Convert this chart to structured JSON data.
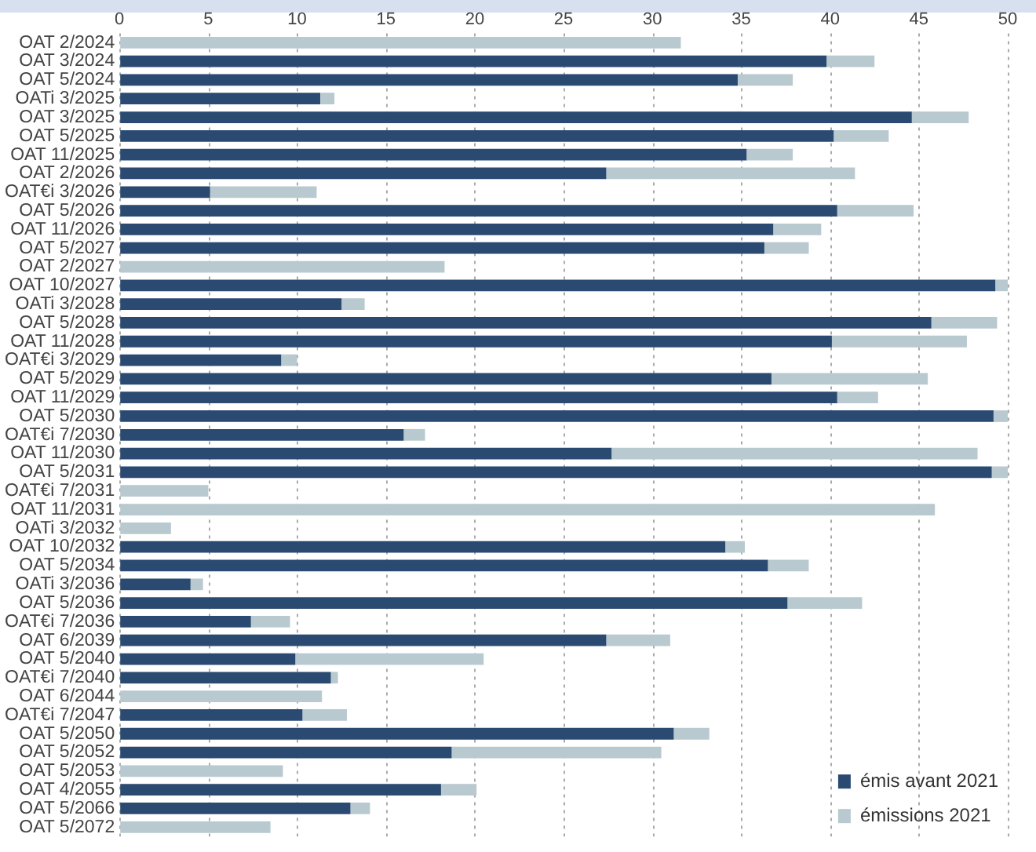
{
  "chart_data": {
    "type": "bar",
    "orientation": "horizontal",
    "stacked": true,
    "grid": "x",
    "legend": "bottom right",
    "categories": [
      "OAT 2/2024",
      "OAT 3/2024",
      "OAT 5/2024",
      "OATi 3/2025",
      "OAT 3/2025",
      "OAT 5/2025",
      "OAT 11/2025",
      "OAT 2/2026",
      "OAT€i 3/2026",
      "OAT 5/2026",
      "OAT 11/2026",
      "OAT 5/2027",
      "OAT 2/2027",
      "OAT 10/2027",
      "OATi 3/2028",
      "OAT 5/2028",
      "OAT 11/2028",
      "OAT€i 3/2029",
      "OAT 5/2029",
      "OAT 11/2029",
      "OAT 5/2030",
      "OAT€i 7/2030",
      "OAT 11/2030",
      "OAT 5/2031",
      "OAT€i 7/2031",
      "OAT 11/2031",
      "OATi 3/2032",
      "OAT 10/2032",
      "OAT 5/2034",
      "OATi 3/2036",
      "OAT 5/2036",
      "OAT€i 7/2036",
      "OAT 6/2039",
      "OAT 5/2040",
      "OAT€i 7/2040",
      "OAT 6/2044",
      "OAT€i 7/2047",
      "OAT 5/2050",
      "OAT 5/2052",
      "OAT 5/2053",
      "OAT 4/2055",
      "OAT 5/2066",
      "OAT 5/2072"
    ],
    "xlim": [
      0,
      50
    ],
    "xticks": [
      0,
      5,
      10,
      15,
      20,
      25,
      30,
      35,
      40,
      45,
      50
    ],
    "series": [
      {
        "name": "émis avant 2021",
        "color": "#2b4a72",
        "values": [
          null,
          39.8,
          34.8,
          11.3,
          44.6,
          40.2,
          35.3,
          27.4,
          5.1,
          40.4,
          36.8,
          36.3,
          null,
          49.3,
          12.5,
          45.7,
          40.1,
          9.1,
          36.7,
          40.4,
          49.2,
          16.0,
          27.7,
          49.1,
          null,
          null,
          null,
          34.1,
          36.5,
          4.0,
          37.6,
          7.4,
          27.4,
          9.9,
          11.9,
          null,
          10.3,
          31.2,
          18.7,
          null,
          18.1,
          13.0,
          null
        ]
      },
      {
        "name": "émissions 2021",
        "color": "#b8c9cf",
        "values": [
          31.6,
          2.7,
          3.1,
          0.8,
          3.2,
          3.1,
          2.6,
          14.0,
          6.0,
          4.3,
          2.7,
          2.5,
          18.3,
          0.7,
          1.3,
          3.7,
          7.6,
          0.9,
          8.8,
          2.3,
          0.8,
          1.2,
          20.6,
          0.9,
          5.0,
          45.9,
          2.9,
          1.1,
          2.3,
          0.7,
          4.2,
          2.2,
          3.6,
          10.6,
          0.4,
          11.4,
          2.5,
          2.0,
          11.8,
          9.2,
          2.0,
          1.1,
          8.5
        ]
      }
    ]
  }
}
